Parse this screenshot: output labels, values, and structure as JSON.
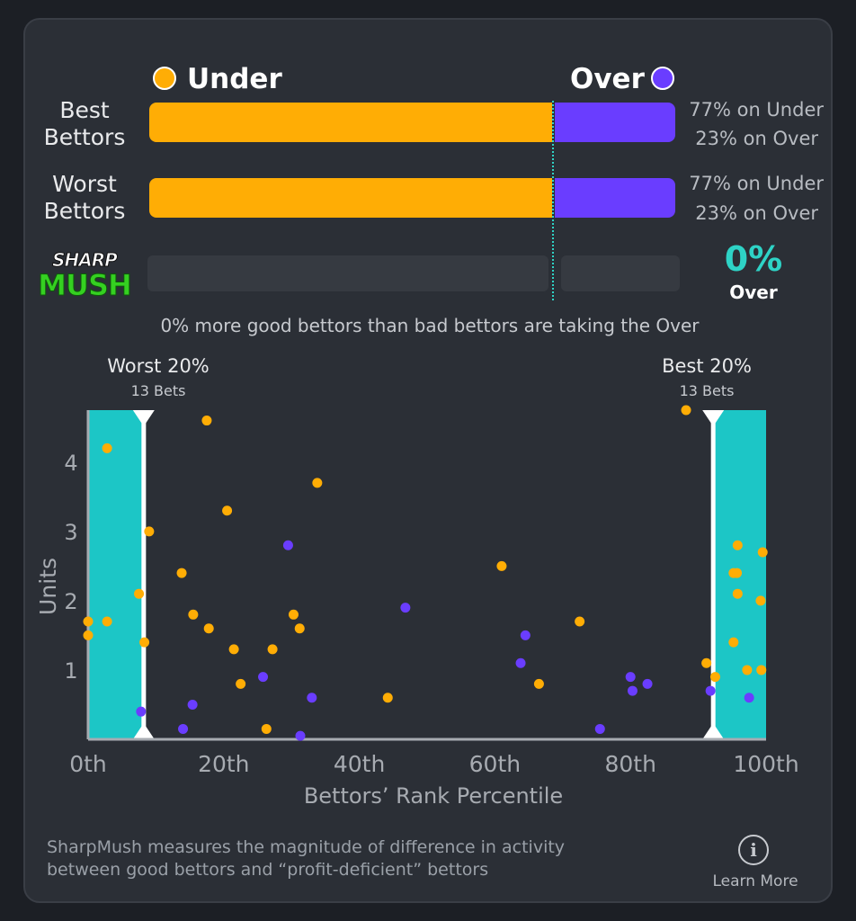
{
  "legend": {
    "under_label": "Under",
    "over_label": "Over",
    "under_color": "#ffad05",
    "over_color": "#6a3dff"
  },
  "rows": [
    {
      "label_line1": "Best",
      "label_line2": "Bettors",
      "under_pct": 77,
      "over_pct": 23,
      "under_text": "77% on Under",
      "over_text": "23% on Over"
    },
    {
      "label_line1": "Worst",
      "label_line2": "Bettors",
      "under_pct": 77,
      "over_pct": 23,
      "under_text": "77% on Under",
      "over_text": "23% on Over"
    }
  ],
  "logo": {
    "top": "SHARP",
    "bottom": "MUSH"
  },
  "sharpmush": {
    "value": "0%",
    "direction": "Over",
    "summary": "0% more good bettors than bad bettors are taking the Over",
    "accent": "#2ed3c6"
  },
  "chart_data": {
    "type": "scatter",
    "xlabel": "Bettors’ Rank Percentile",
    "ylabel": "Units",
    "xlim": [
      0,
      100
    ],
    "ylim": [
      0,
      4.75
    ],
    "x_ticks": [
      "0th",
      "20th",
      "40th",
      "60th",
      "80th",
      "100th"
    ],
    "x_tick_values": [
      0,
      20,
      40,
      60,
      80,
      100
    ],
    "y_ticks": [
      "1",
      "2",
      "3",
      "4"
    ],
    "y_tick_values": [
      1,
      2,
      3,
      4
    ],
    "grid": false,
    "regions": [
      {
        "name": "Worst 20%",
        "sub": "13 Bets",
        "from": 0,
        "to": 8.2,
        "color": "#1cc6c6"
      },
      {
        "name": "Best 20%",
        "sub": "13 Bets",
        "from": 92.2,
        "to": 100,
        "color": "#1cc6c6"
      }
    ],
    "series": [
      {
        "name": "Under",
        "color": "#ffad05",
        "points": [
          [
            0,
            1.7
          ],
          [
            0,
            1.5
          ],
          [
            2.8,
            4.2
          ],
          [
            2.8,
            1.7
          ],
          [
            7.5,
            2.1
          ],
          [
            8.3,
            1.4
          ],
          [
            9,
            3.0
          ],
          [
            13.8,
            2.4
          ],
          [
            15.5,
            1.8
          ],
          [
            17.5,
            4.6
          ],
          [
            17.8,
            1.6
          ],
          [
            20.5,
            3.3
          ],
          [
            21.5,
            1.3
          ],
          [
            22.5,
            0.8
          ],
          [
            26.3,
            0.15
          ],
          [
            27.2,
            1.3
          ],
          [
            30.3,
            1.8
          ],
          [
            31.2,
            1.6
          ],
          [
            33.8,
            3.7
          ],
          [
            44.2,
            0.6
          ],
          [
            61,
            2.5
          ],
          [
            66.5,
            0.8
          ],
          [
            72.5,
            1.7
          ],
          [
            88.2,
            4.75
          ],
          [
            91.2,
            1.1
          ],
          [
            92.5,
            0.9
          ],
          [
            95.2,
            2.4
          ],
          [
            95.7,
            2.4
          ],
          [
            95.8,
            2.8
          ],
          [
            95.8,
            2.1
          ],
          [
            95.2,
            1.4
          ],
          [
            97.2,
            1.0
          ],
          [
            99.5,
            2.7
          ],
          [
            99.2,
            2.0
          ],
          [
            99.3,
            1.0
          ]
        ]
      },
      {
        "name": "Over",
        "color": "#6a3dff",
        "points": [
          [
            7.8,
            0.4
          ],
          [
            14,
            0.15
          ],
          [
            15.4,
            0.5
          ],
          [
            25.8,
            0.9
          ],
          [
            29.5,
            2.8
          ],
          [
            31.3,
            0.05
          ],
          [
            33,
            0.6
          ],
          [
            46.8,
            1.9
          ],
          [
            63.8,
            1.1
          ],
          [
            64.5,
            1.5
          ],
          [
            75.5,
            0.15
          ],
          [
            80,
            0.9
          ],
          [
            80.3,
            0.7
          ],
          [
            82.5,
            0.8
          ],
          [
            91.8,
            0.7
          ],
          [
            97.5,
            0.6
          ]
        ]
      }
    ]
  },
  "footer": {
    "note_line1": "SharpMush measures the magnitude of difference in activity",
    "note_line2": "between good bettors and “profit-deficient” bettors",
    "info_glyph": "i",
    "learn_more": "Learn More"
  }
}
